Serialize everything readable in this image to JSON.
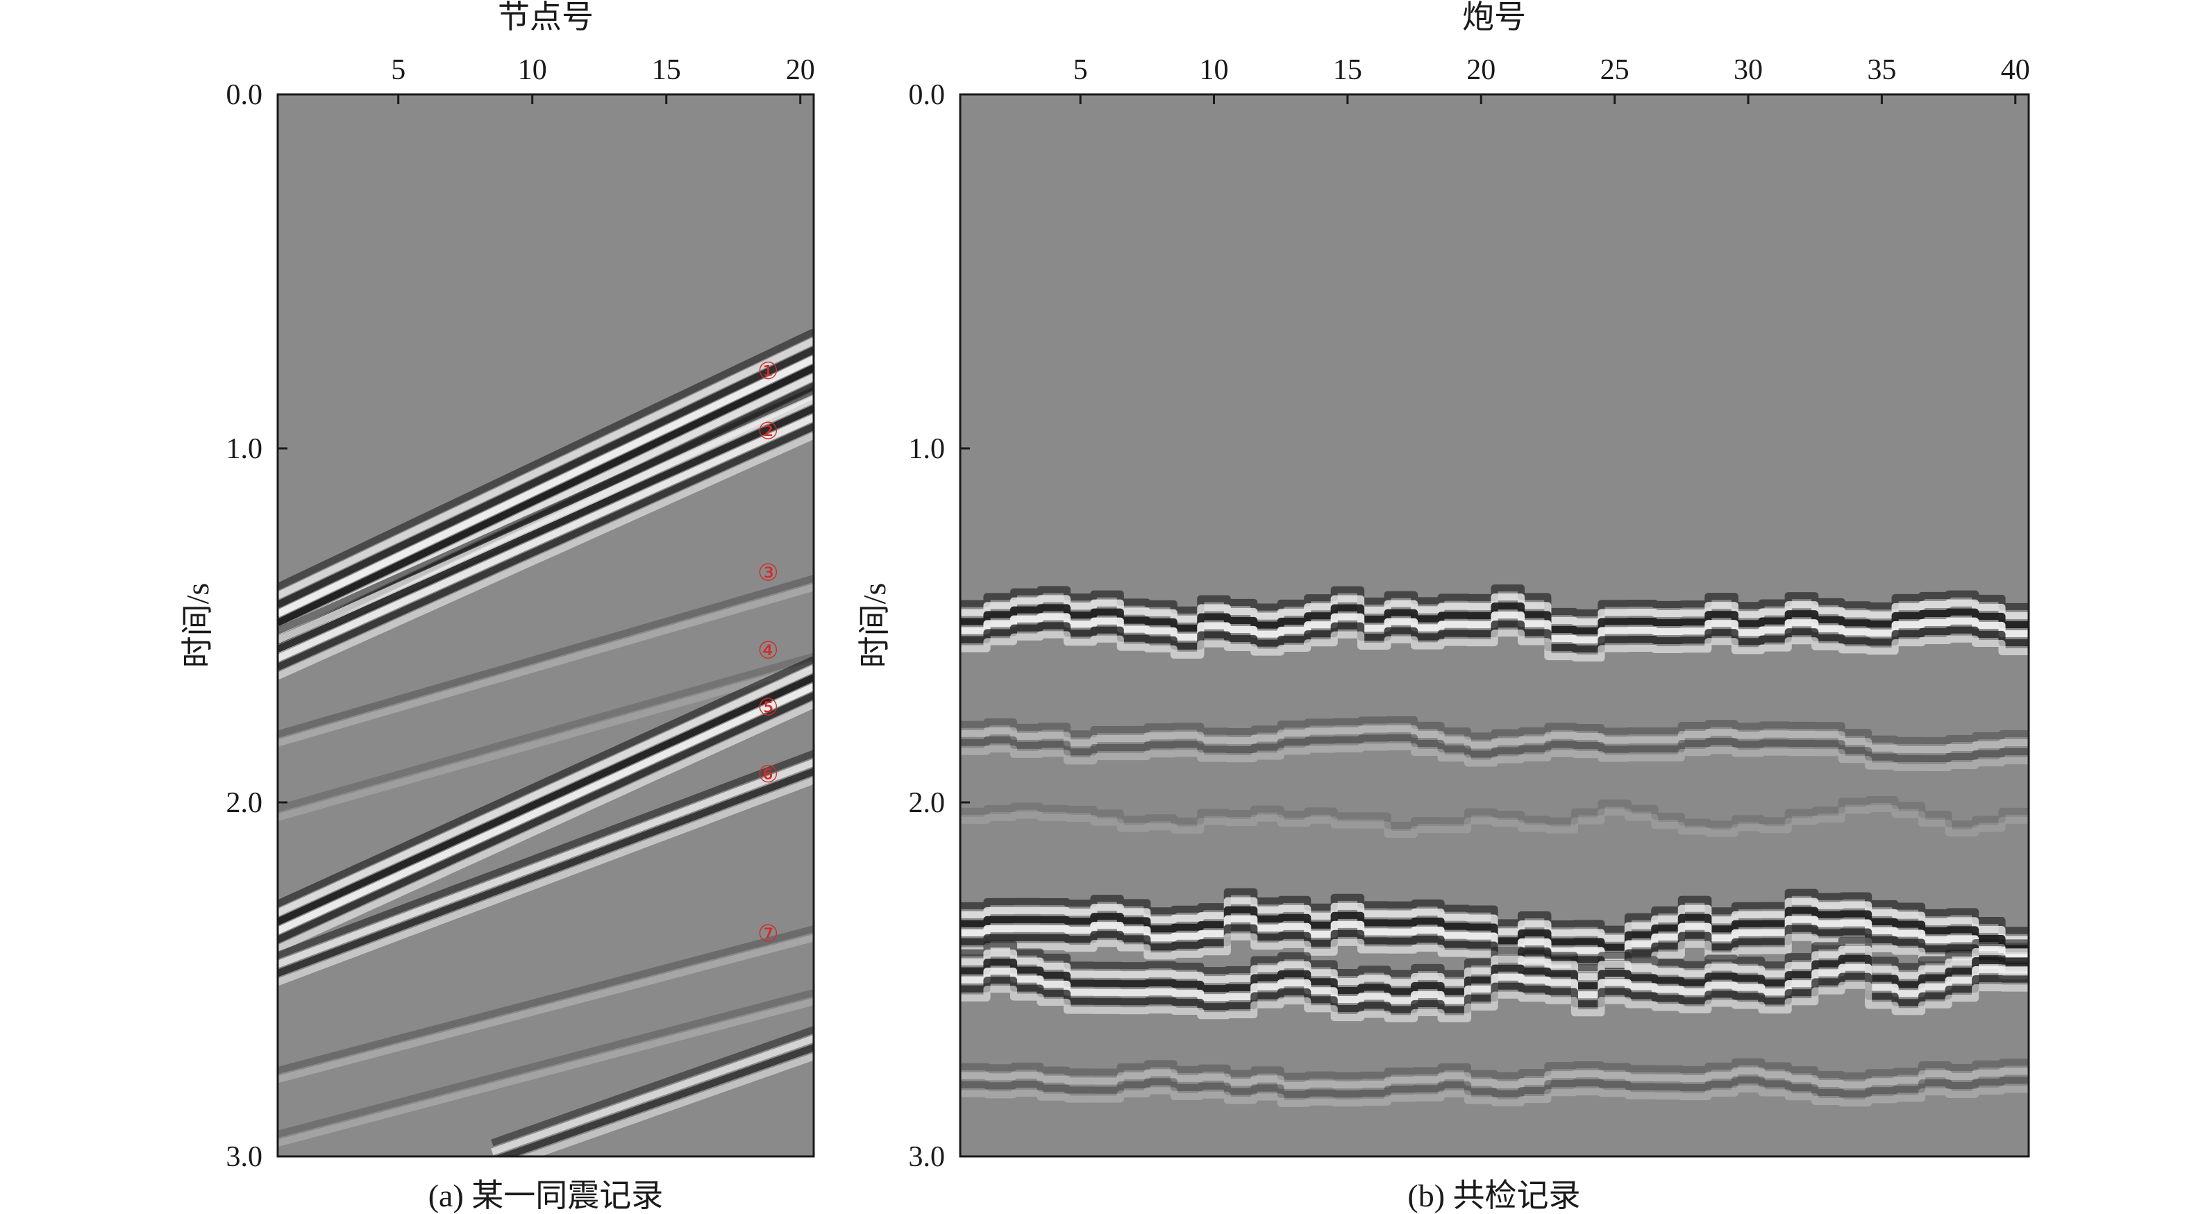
{
  "colors": {
    "background_gray": "#8a8a8a",
    "marker_red": "#d42a2a",
    "axis": "#1a1a1a"
  },
  "chart_data": [
    {
      "type": "heatmap",
      "subtype": "seismic-wiggle-density",
      "caption": "(a) 某一同震记录",
      "xlabel": "节点号",
      "ylabel": "时间/s",
      "x_axis_position": "top",
      "xlim": [
        0.5,
        20.5
      ],
      "xticks": [
        5,
        10,
        15,
        20
      ],
      "xtick_labels": [
        "5",
        "10",
        "15",
        "20"
      ],
      "ylim": [
        3.0,
        0.0
      ],
      "yticks": [
        0.0,
        1.0,
        2.0,
        3.0
      ],
      "ytick_labels": [
        "0.0",
        "1.0",
        "2.0",
        "3.0"
      ],
      "markers": [
        {
          "label": "①",
          "x": 18.8,
          "t": 0.78
        },
        {
          "label": "②",
          "x": 18.8,
          "t": 0.95
        },
        {
          "label": "③",
          "x": 18.8,
          "t": 1.35
        },
        {
          "label": "④",
          "x": 18.8,
          "t": 1.57
        },
        {
          "label": "⑤",
          "x": 18.8,
          "t": 1.73
        },
        {
          "label": "⑥",
          "x": 18.8,
          "t": 1.92
        },
        {
          "label": "⑦",
          "x": 18.8,
          "t": 2.37
        }
      ],
      "events": [
        {
          "x_start": 0.5,
          "t_start": 1.48,
          "x_end": 20.5,
          "t_end": 0.76,
          "amplitude": 1.0,
          "cycles": 4
        },
        {
          "x_start": 0.5,
          "t_start": 1.58,
          "x_end": 20.5,
          "t_end": 0.9,
          "amplitude": 0.95,
          "cycles": 3
        },
        {
          "x_start": 0.5,
          "t_start": 1.82,
          "x_end": 20.5,
          "t_end": 1.38,
          "amplitude": 0.35,
          "cycles": 1
        },
        {
          "x_start": 0.5,
          "t_start": 2.03,
          "x_end": 20.5,
          "t_end": 1.6,
          "amplitude": 0.25,
          "cycles": 1
        },
        {
          "x_start": 0.5,
          "t_start": 2.35,
          "x_end": 20.5,
          "t_end": 1.66,
          "amplitude": 1.0,
          "cycles": 3
        },
        {
          "x_start": 0.5,
          "t_start": 2.47,
          "x_end": 20.5,
          "t_end": 1.9,
          "amplitude": 0.85,
          "cycles": 2
        },
        {
          "x_start": 0.5,
          "t_start": 2.77,
          "x_end": 20.5,
          "t_end": 2.37,
          "amplitude": 0.35,
          "cycles": 1
        },
        {
          "x_start": 8.5,
          "t_start": 3.0,
          "x_end": 20.5,
          "t_end": 2.68,
          "amplitude": 0.8,
          "cycles": 2
        },
        {
          "x_start": 0.5,
          "t_start": 2.95,
          "x_end": 20.5,
          "t_end": 2.55,
          "amplitude": 0.3,
          "cycles": 1
        }
      ]
    },
    {
      "type": "heatmap",
      "subtype": "seismic-wiggle-density",
      "caption": "(b) 共检记录",
      "xlabel": "炮号",
      "ylabel": "时间/s",
      "x_axis_position": "top",
      "xlim": [
        0.5,
        40.5
      ],
      "xticks": [
        5,
        10,
        15,
        20,
        25,
        30,
        35,
        40
      ],
      "xtick_labels": [
        "5",
        "10",
        "15",
        "20",
        "25",
        "30",
        "35",
        "40"
      ],
      "ylim": [
        3.0,
        0.0
      ],
      "yticks": [
        0.0,
        1.0,
        2.0,
        3.0
      ],
      "ytick_labels": [
        "0.0",
        "1.0",
        "2.0",
        "3.0"
      ],
      "event_groups": [
        {
          "t0": 1.5,
          "amplitude": 1.0,
          "cycles": 3,
          "jitter": 0.08
        },
        {
          "t0": 1.83,
          "amplitude": 0.45,
          "cycles": 2,
          "jitter": 0.04
        },
        {
          "t0": 2.05,
          "amplitude": 0.2,
          "cycles": 1,
          "jitter": 0.05
        },
        {
          "t0": 2.38,
          "amplitude": 1.0,
          "cycles": 3,
          "jitter": 0.08
        },
        {
          "t0": 2.49,
          "amplitude": 0.95,
          "cycles": 3,
          "jitter": 0.09
        },
        {
          "t0": 2.8,
          "amplitude": 0.4,
          "cycles": 2,
          "jitter": 0.04
        }
      ]
    }
  ]
}
